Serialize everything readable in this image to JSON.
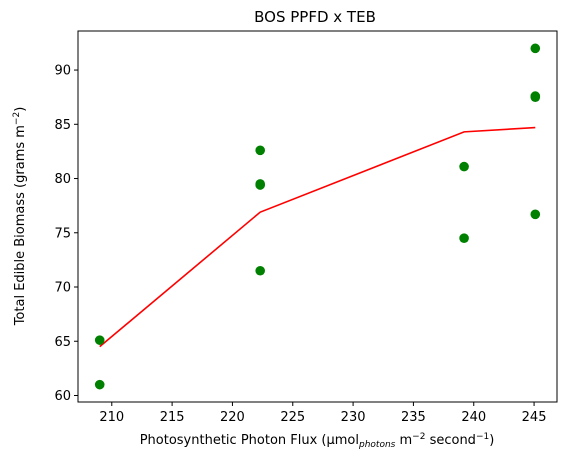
{
  "chart_data": {
    "type": "scatter",
    "title": "BOS PPFD x TEB",
    "xlabel": {
      "prefix": "Photosynthetic Photon Flux (µmol",
      "sub": "photons",
      "mid1": " m",
      "sup1": "−2",
      "mid2": " second",
      "sup2": "−1",
      "suffix": ")"
    },
    "ylabel": {
      "prefix": "Total Edible Biomass (grams m",
      "sup": "−2",
      "suffix": ")"
    },
    "xlim": [
      207.2,
      246.9
    ],
    "ylim": [
      59.4,
      93.6
    ],
    "xticks": [
      210,
      215,
      220,
      225,
      230,
      235,
      240,
      245
    ],
    "yticks": [
      60,
      65,
      70,
      75,
      80,
      85,
      90
    ],
    "grid": false,
    "legend": "none",
    "series": [
      {
        "kind": "scatter",
        "color": "#008000",
        "points": [
          [
            209.0,
            65.1
          ],
          [
            209.0,
            61.0
          ],
          [
            222.3,
            82.6
          ],
          [
            222.3,
            79.5
          ],
          [
            222.3,
            79.4
          ],
          [
            222.3,
            71.5
          ],
          [
            239.2,
            81.1
          ],
          [
            239.2,
            74.5
          ],
          [
            245.1,
            92.0
          ],
          [
            245.1,
            87.6
          ],
          [
            245.1,
            87.5
          ],
          [
            245.1,
            76.7
          ]
        ]
      },
      {
        "kind": "line",
        "color": "#ff0000",
        "points": [
          [
            209.0,
            64.5
          ],
          [
            222.3,
            76.9
          ],
          [
            239.2,
            84.3
          ],
          [
            245.1,
            84.7
          ]
        ]
      }
    ]
  }
}
